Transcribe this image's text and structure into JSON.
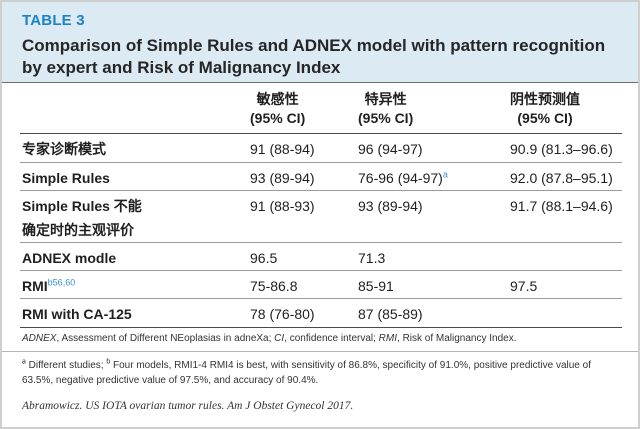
{
  "table": {
    "label": "TABLE 3",
    "title": "Comparison of Simple Rules and ADNEX model with pattern recognition by expert and Risk of Malignancy Index",
    "columns": {
      "sensitivity": {
        "name": "敏感性",
        "sub": "(95% CI)"
      },
      "specificity": {
        "name": "特异性",
        "sub": "(95% CI)"
      },
      "npv": {
        "name": "阴性预测值",
        "sub": "(95% CI)"
      }
    },
    "rows": [
      {
        "label": "专家诊断模式",
        "sensitivity": "91 (88-94)",
        "specificity": "96 (94-97)",
        "npv": "90.9 (81.3–96.6)"
      },
      {
        "label": "Simple Rules",
        "sensitivity": "93 (89-94)",
        "specificity": "76-96 (94-97)",
        "specificity_sup": "a",
        "npv": "92.0 (87.8–95.1)"
      },
      {
        "label_lines": [
          "Simple Rules 不能",
          "确定时的主观评价"
        ],
        "sensitivity": "91 (88-93)",
        "specificity": "93 (89-94)",
        "npv": "91.7 (88.1–94.6)"
      },
      {
        "label": "ADNEX modle",
        "sensitivity": "96.5",
        "specificity": "71.3"
      },
      {
        "label": "RMI",
        "label_sup": "b56,60",
        "sensitivity": "75-86.8",
        "specificity": "85-91",
        "npv": "97.5"
      },
      {
        "label": "RMI with CA-125",
        "sensitivity": "78 (76-80)",
        "specificity": "87 (85-89)"
      }
    ]
  },
  "footnotes": {
    "abbreviations": [
      {
        "term": "ADNEX",
        "text": ", Assessment of Different NEoplasias in adneXa; "
      },
      {
        "term": "CI",
        "text": ", confidence interval; "
      },
      {
        "term": "RMI",
        "text": ", Risk of Malignancy Index."
      }
    ],
    "notes": [
      {
        "mark": "a",
        "text": " Different studies; "
      },
      {
        "mark": "b",
        "text": " Four models, RMI1-4 RMI4 is best, with sensitivity of 86.8%, specificity of 91.0%, positive predictive value of 63.5%, negative predictive value of 97.5%, and accuracy of 90.4%."
      }
    ],
    "source": "Abramowicz. US IOTA ovarian tumor rules. Am J Obstet Gynecol 2017."
  },
  "colors": {
    "accent": "#1b83c6",
    "header_band": "#dceaf4",
    "superscript": "#3b8ed6"
  }
}
